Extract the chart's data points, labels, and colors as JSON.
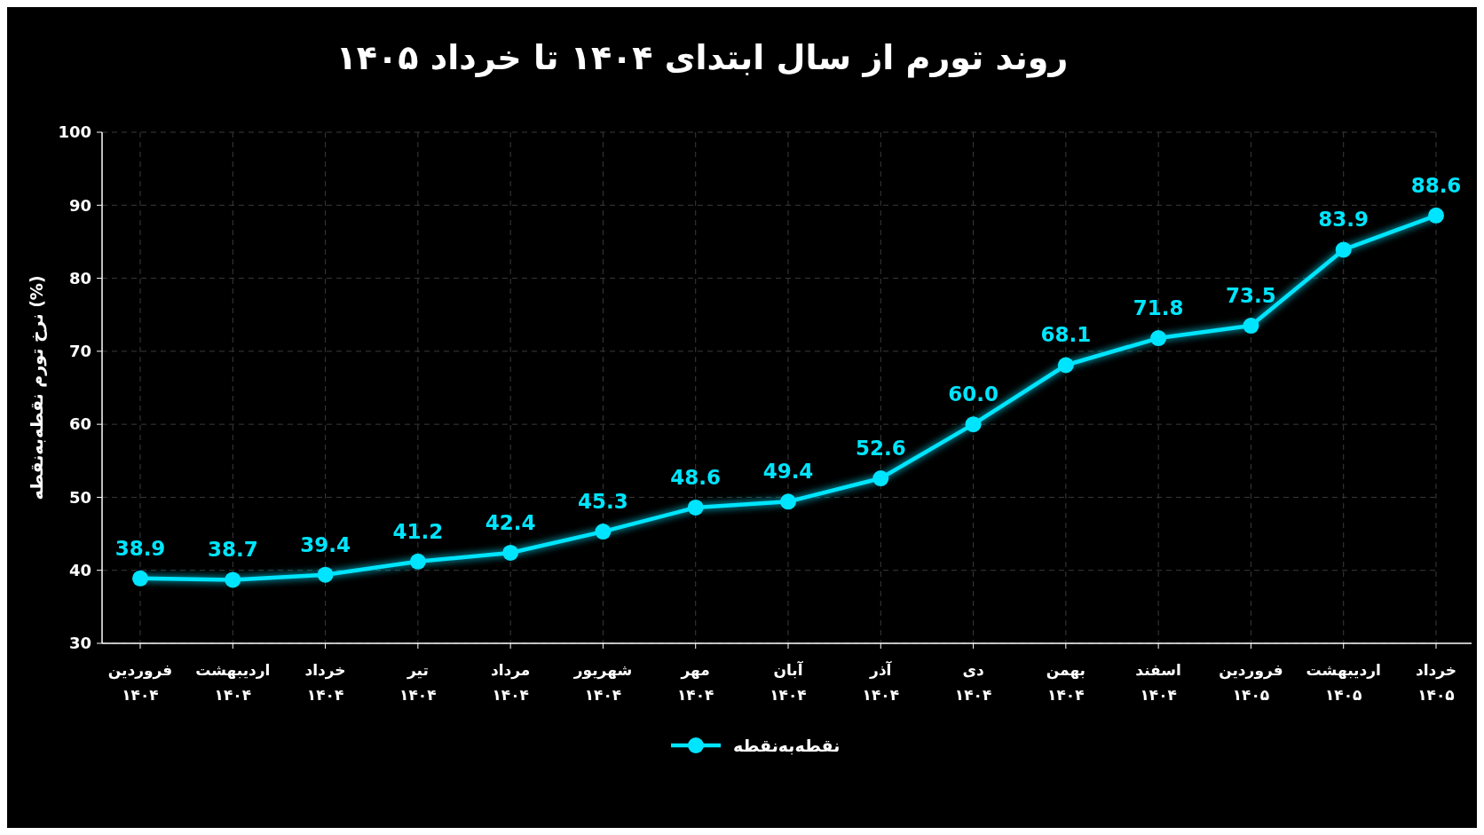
{
  "chart_data": {
    "type": "line",
    "title": "روند تورم از سال ابتدای ۱۴۰۴ تا خرداد ۱۴۰۵",
    "ylabel": "نرخ تورم نقطه‌به‌نقطه (%)",
    "categories": [
      "فروردین ۱۴۰۴",
      "اردیبهشت ۱۴۰۴",
      "خرداد ۱۴۰۴",
      "تیر ۱۴۰۴",
      "مرداد ۱۴۰۴",
      "شهریور ۱۴۰۴",
      "مهر ۱۴۰۴",
      "آبان ۱۴۰۴",
      "آذر ۱۴۰۴",
      "دی ۱۴۰۴",
      "بهمن ۱۴۰۴",
      "اسفند ۱۴۰۴",
      "فروردین ۱۴۰۵",
      "اردیبهشت ۱۴۰۵",
      "خرداد ۱۴۰۵"
    ],
    "series": [
      {
        "name": "نقطه‌به‌نقطه",
        "color": "#00e5ff",
        "values": [
          38.9,
          38.7,
          39.4,
          41.2,
          42.4,
          45.3,
          48.6,
          49.4,
          52.6,
          60.0,
          68.1,
          71.8,
          73.5,
          83.9,
          88.6
        ],
        "value_labels": [
          "38.9",
          "38.7",
          "39.4",
          "41.2",
          "42.4",
          "45.3",
          "48.6",
          "49.4",
          "52.6",
          "60.0",
          "68.1",
          "71.8",
          "73.5",
          "83.9",
          "88.6"
        ]
      }
    ],
    "ylim": [
      30,
      100
    ],
    "yticks": [
      30,
      40,
      50,
      60,
      70,
      80,
      90,
      100
    ],
    "grid": true,
    "legend": "bottom",
    "marker": "circle",
    "line_style": "solid"
  }
}
